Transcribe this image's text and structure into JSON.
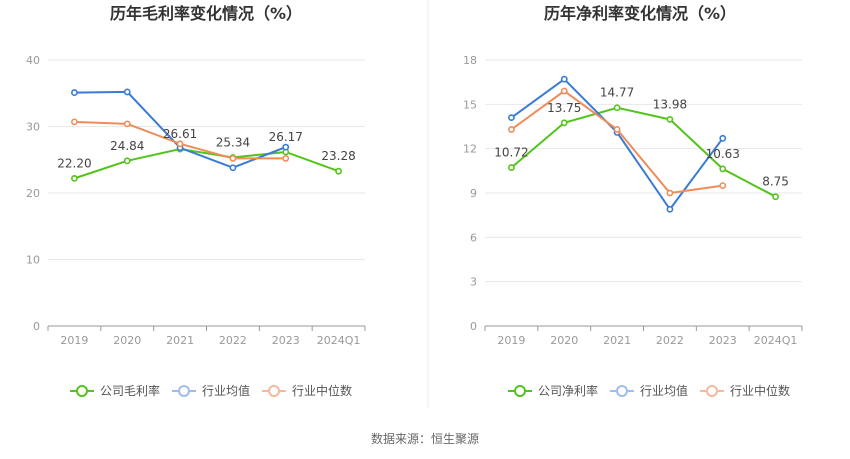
{
  "source_label": "数据来源：恒生聚源",
  "chart_data": [
    {
      "type": "line",
      "title": "历年毛利率变化情况（%）",
      "categories": [
        "2019",
        "2020",
        "2021",
        "2022",
        "2023",
        "2024Q1"
      ],
      "ylim": [
        0,
        40
      ],
      "yticks": [
        0,
        10,
        20,
        30,
        40
      ],
      "grid": true,
      "legend_position": "bottom",
      "series": [
        {
          "name": "公司毛利率",
          "color": "#52c41a",
          "values": [
            22.2,
            24.84,
            26.61,
            25.34,
            26.17,
            23.28
          ],
          "labels": [
            "22.20",
            "24.84",
            "26.61",
            "25.34",
            "26.17",
            "23.28"
          ]
        },
        {
          "name": "行业均值",
          "color": "#3a7bd5",
          "values": [
            35.1,
            35.2,
            26.8,
            23.8,
            26.9,
            null
          ],
          "labels": null
        },
        {
          "name": "行业中位数",
          "color": "#f08c5a",
          "values": [
            30.7,
            30.4,
            27.4,
            25.2,
            25.2,
            null
          ],
          "labels": null
        }
      ]
    },
    {
      "type": "line",
      "title": "历年净利率变化情况（%）",
      "categories": [
        "2019",
        "2020",
        "2021",
        "2022",
        "2023",
        "2024Q1"
      ],
      "ylim": [
        0,
        18
      ],
      "yticks": [
        0,
        3,
        6,
        9,
        12,
        15,
        18
      ],
      "grid": true,
      "legend_position": "bottom",
      "series": [
        {
          "name": "公司净利率",
          "color": "#52c41a",
          "values": [
            10.72,
            13.75,
            14.77,
            13.98,
            10.63,
            8.75
          ],
          "labels": [
            "10.72",
            "13.75",
            "14.77",
            "13.98",
            "10.63",
            "8.75"
          ]
        },
        {
          "name": "行业均值",
          "color": "#3a7bd5",
          "values": [
            14.1,
            16.7,
            13.1,
            7.9,
            12.7,
            null
          ],
          "labels": null
        },
        {
          "name": "行业中位数",
          "color": "#f08c5a",
          "values": [
            13.3,
            15.9,
            13.3,
            9.0,
            9.5,
            null
          ],
          "labels": null
        }
      ]
    }
  ]
}
